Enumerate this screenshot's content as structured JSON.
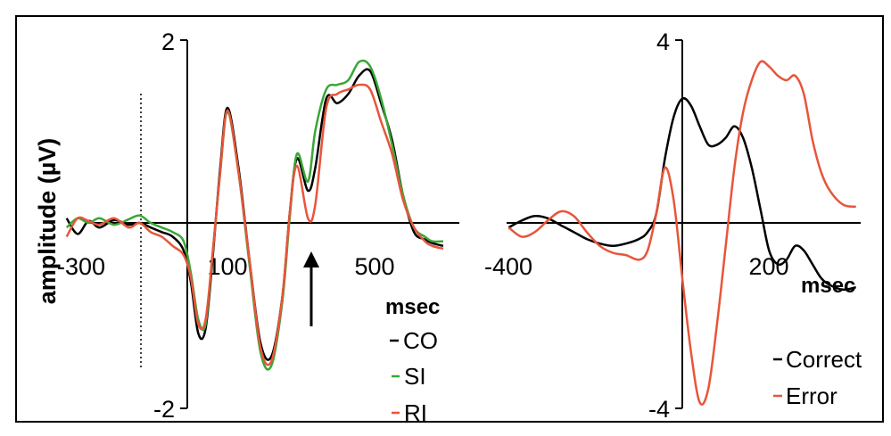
{
  "chart_data": [
    {
      "type": "line",
      "panel": "left",
      "title": "",
      "ylabel": "amplitude (µV)",
      "xlabel": "msec",
      "ylim": [
        -2,
        2
      ],
      "yticks": [
        {
          "value": 2,
          "label": "2"
        },
        {
          "value": -2,
          "label": "-2"
        }
      ],
      "xticks": [
        {
          "value": -300,
          "label": "-300"
        },
        {
          "value": 100,
          "label": "100"
        },
        {
          "value": 500,
          "label": "500"
        }
      ],
      "annotation": "upward arrow near 350 msec; dotted vertical line at -100 msec",
      "legend_position": "bottom-right",
      "series": [
        {
          "name": "CO",
          "color": "#000000",
          "x": [
            -330,
            -300,
            -270,
            -240,
            -200,
            -160,
            -130,
            -100,
            -70,
            -40,
            -10,
            10,
            30,
            50,
            70,
            90,
            110,
            140,
            170,
            200,
            230,
            260,
            280,
            300,
            330,
            350,
            380,
            410,
            440,
            470,
            500,
            530,
            560,
            590,
            620,
            650,
            670,
            700
          ],
          "y": [
            0.05,
            -0.12,
            0.02,
            -0.05,
            0.03,
            -0.02,
            0.0,
            -0.05,
            -0.1,
            -0.15,
            -0.3,
            -0.65,
            -1.2,
            -1.15,
            -0.35,
            0.6,
            1.25,
            0.6,
            -0.4,
            -1.3,
            -1.45,
            -0.8,
            0.1,
            0.7,
            0.35,
            0.6,
            1.35,
            1.3,
            1.4,
            1.6,
            1.65,
            1.3,
            0.9,
            0.3,
            -0.1,
            -0.18,
            -0.22,
            -0.25
          ]
        },
        {
          "name": "SI",
          "color": "#3aa636",
          "x": [
            -330,
            -300,
            -270,
            -240,
            -200,
            -160,
            -130,
            -100,
            -70,
            -40,
            -10,
            10,
            30,
            50,
            70,
            90,
            110,
            140,
            170,
            200,
            230,
            260,
            280,
            300,
            330,
            350,
            380,
            410,
            440,
            470,
            500,
            530,
            560,
            590,
            620,
            650,
            670,
            700
          ],
          "y": [
            -0.05,
            0.05,
            0.0,
            0.05,
            -0.02,
            0.04,
            0.08,
            0.0,
            -0.05,
            -0.1,
            -0.2,
            -0.55,
            -1.05,
            -1.1,
            -0.3,
            0.55,
            1.2,
            0.55,
            -0.45,
            -1.4,
            -1.55,
            -0.85,
            0.05,
            0.75,
            0.45,
            1.0,
            1.45,
            1.5,
            1.55,
            1.75,
            1.7,
            1.35,
            0.85,
            0.3,
            -0.05,
            -0.15,
            -0.2,
            -0.2
          ]
        },
        {
          "name": "RI",
          "color": "#e8553a",
          "x": [
            -330,
            -300,
            -270,
            -240,
            -200,
            -160,
            -130,
            -100,
            -70,
            -40,
            -10,
            10,
            30,
            50,
            70,
            90,
            110,
            140,
            170,
            200,
            230,
            260,
            280,
            300,
            330,
            350,
            380,
            410,
            440,
            470,
            500,
            530,
            560,
            590,
            620,
            650,
            670,
            700
          ],
          "y": [
            -0.15,
            0.05,
            0.02,
            -0.02,
            0.05,
            -0.05,
            0.0,
            -0.1,
            -0.15,
            -0.25,
            -0.35,
            -0.6,
            -1.1,
            -1.05,
            -0.3,
            0.55,
            1.22,
            0.55,
            -0.4,
            -1.35,
            -1.5,
            -0.8,
            0.1,
            0.62,
            0.05,
            0.2,
            1.25,
            1.4,
            1.45,
            1.5,
            1.45,
            1.1,
            0.75,
            0.25,
            -0.05,
            -0.2,
            -0.25,
            -0.28
          ]
        }
      ]
    },
    {
      "type": "line",
      "panel": "right",
      "title": "",
      "ylabel": "",
      "xlabel": "msec",
      "ylim": [
        -4,
        4
      ],
      "yticks": [
        {
          "value": 4,
          "label": "4"
        },
        {
          "value": -4,
          "label": "-4"
        }
      ],
      "xticks": [
        {
          "value": -400,
          "label": "-400"
        },
        {
          "value": 200,
          "label": "200"
        }
      ],
      "legend_position": "bottom-right",
      "series": [
        {
          "name": "Correct",
          "color": "#000000",
          "x": [
            -400,
            -370,
            -340,
            -310,
            -280,
            -250,
            -220,
            -190,
            -160,
            -130,
            -100,
            -80,
            -60,
            -40,
            -20,
            0,
            20,
            40,
            60,
            80,
            100,
            120,
            140,
            160,
            180,
            200,
            220,
            240,
            260,
            280,
            300,
            320,
            340,
            370,
            400
          ],
          "y": [
            -0.1,
            0.05,
            0.15,
            0.1,
            -0.05,
            -0.2,
            -0.35,
            -0.45,
            -0.5,
            -0.45,
            -0.35,
            -0.2,
            0.2,
            1.4,
            2.3,
            2.7,
            2.55,
            2.1,
            1.7,
            1.7,
            1.85,
            2.1,
            1.85,
            1.2,
            0.3,
            -0.6,
            -0.9,
            -0.8,
            -0.5,
            -0.6,
            -0.9,
            -1.2,
            -1.35,
            -1.45,
            -1.4
          ]
        },
        {
          "name": "Error",
          "color": "#e8553a",
          "x": [
            -400,
            -370,
            -340,
            -310,
            -280,
            -250,
            -220,
            -190,
            -160,
            -130,
            -100,
            -80,
            -60,
            -40,
            -20,
            0,
            20,
            40,
            60,
            80,
            100,
            120,
            140,
            160,
            180,
            200,
            220,
            240,
            260,
            280,
            300,
            320,
            340,
            370,
            400
          ],
          "y": [
            -0.1,
            -0.3,
            -0.2,
            0.05,
            0.25,
            0.15,
            -0.2,
            -0.5,
            -0.65,
            -0.7,
            -0.8,
            -0.6,
            0.2,
            1.2,
            0.5,
            -1.2,
            -2.8,
            -3.9,
            -3.6,
            -2.2,
            -0.5,
            1.2,
            2.4,
            3.1,
            3.5,
            3.4,
            3.2,
            3.1,
            3.2,
            2.8,
            1.8,
            1.1,
            0.7,
            0.4,
            0.35
          ]
        }
      ]
    }
  ]
}
